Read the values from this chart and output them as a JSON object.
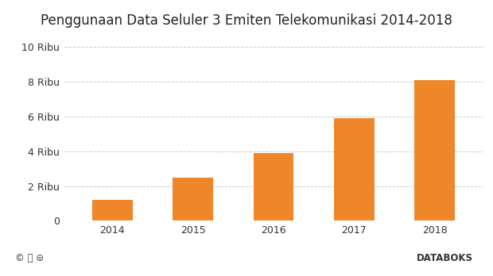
{
  "title": "Penggunaan Data Seluler 3 Emiten Telekomunikasi 2014-2018",
  "categories": [
    "2014",
    "2015",
    "2016",
    "2017",
    "2018"
  ],
  "values": [
    1200,
    2500,
    3900,
    5900,
    8100
  ],
  "bar_color": "#F0862A",
  "background_color": "#ffffff",
  "footer_bg": "#f0f0f0",
  "yticks": [
    0,
    2000,
    4000,
    6000,
    8000,
    10000
  ],
  "ytick_labels": [
    "0",
    "2 Ribu",
    "4 Ribu",
    "6 Ribu",
    "8 Ribu",
    "10 Ribu"
  ],
  "ylim": [
    0,
    10800
  ],
  "grid_color": "#cccccc",
  "title_fontsize": 12,
  "tick_fontsize": 9,
  "databoks_color": "#F0862A",
  "databoks_text": "DATABOKS"
}
